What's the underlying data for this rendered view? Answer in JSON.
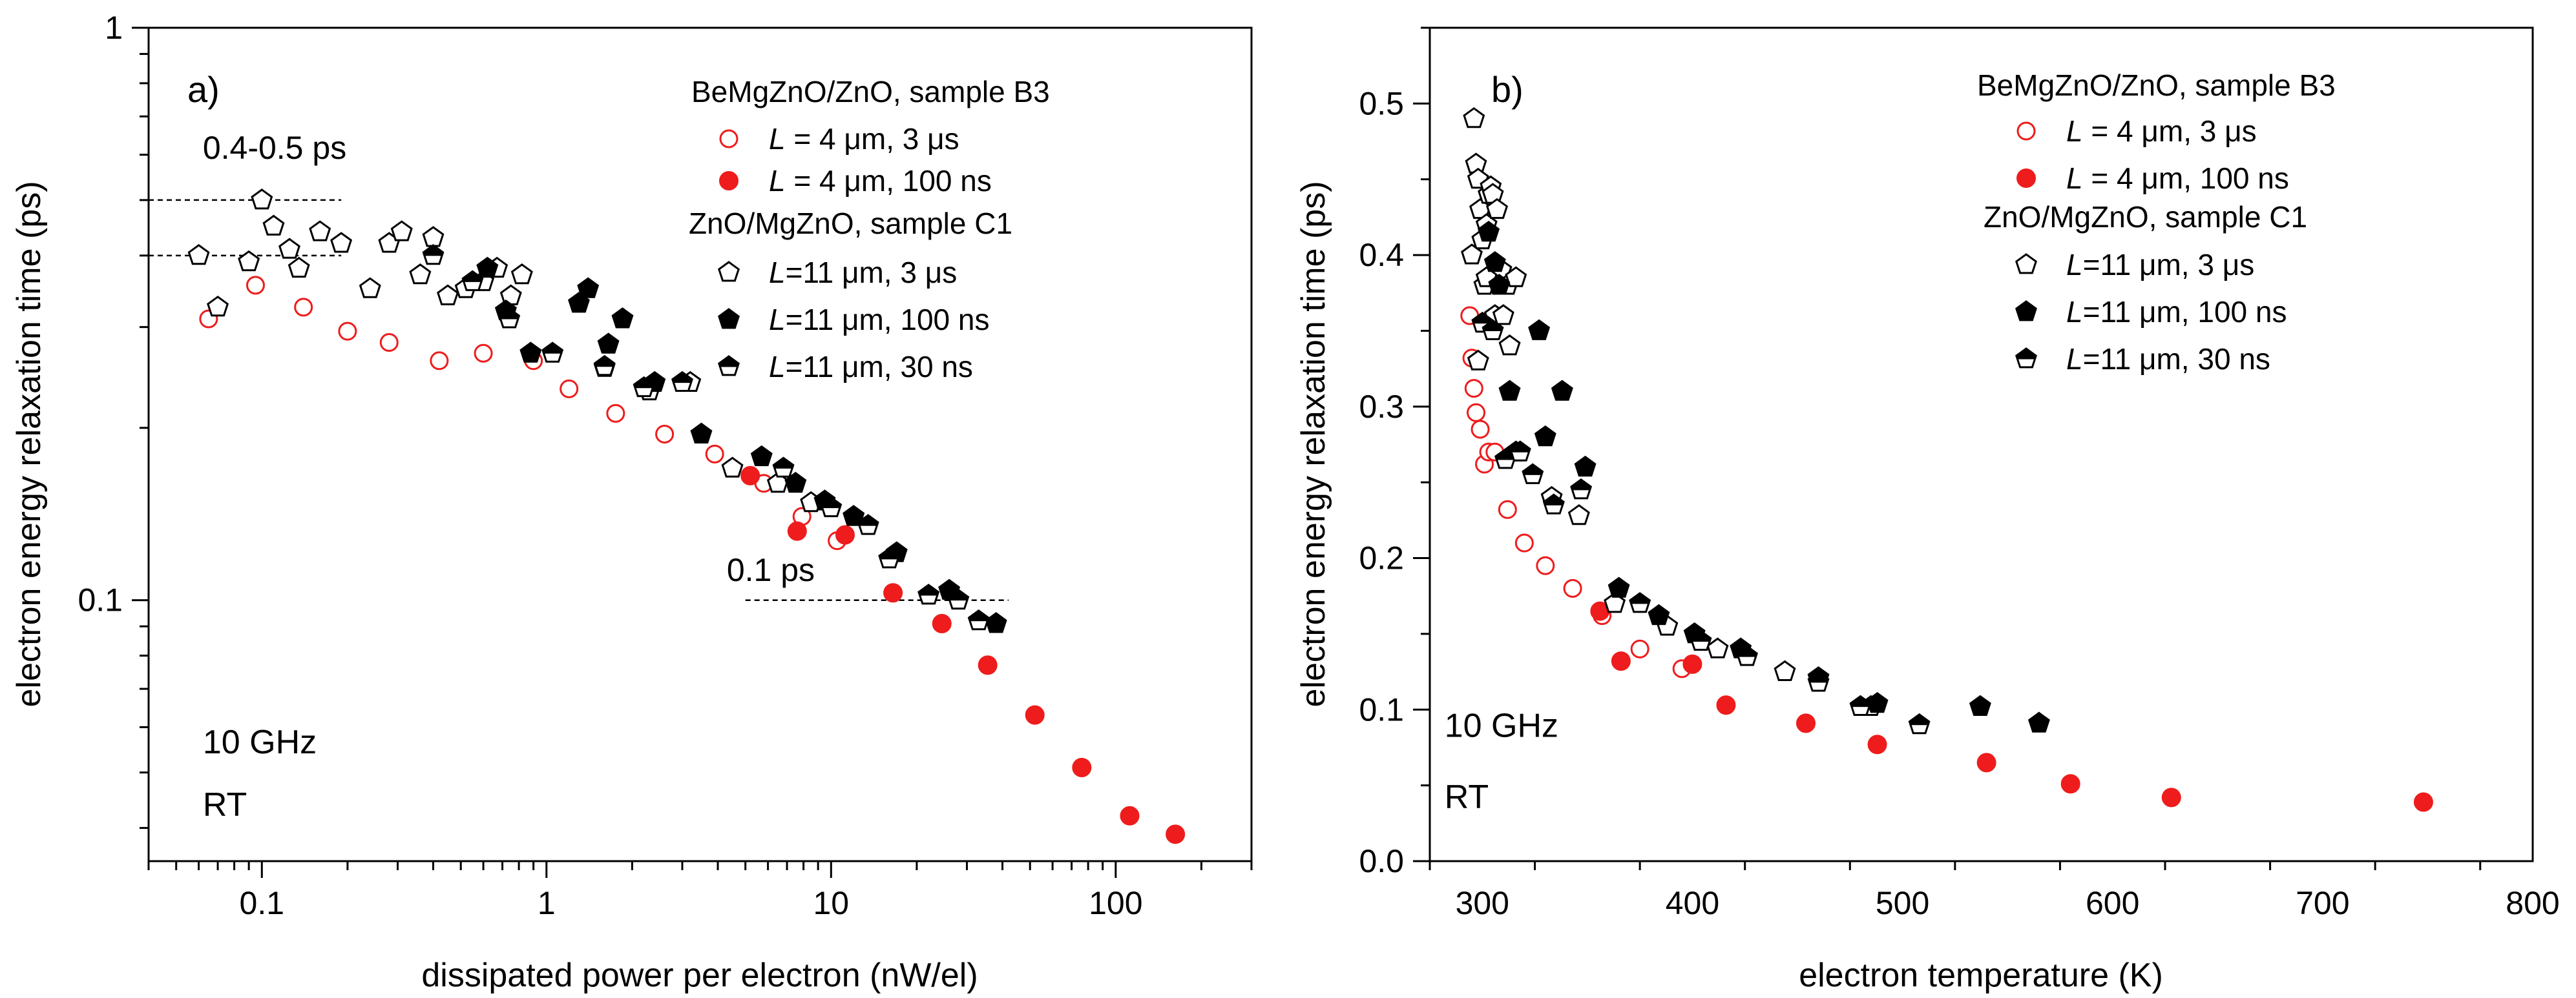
{
  "colors": {
    "red": "#ee1c1c",
    "black": "#000000"
  },
  "chart_data": [
    {
      "type": "scatter",
      "panel_label": "a)",
      "xscale": "log",
      "yscale": "log",
      "xlim": [
        0.04,
        300
      ],
      "ylim": [
        0.035,
        1
      ],
      "x_ticks": [
        0.1,
        1,
        10,
        100
      ],
      "x_tick_labels": [
        "0.1",
        "1",
        "10",
        "100"
      ],
      "y_ticks": [
        0.1,
        1
      ],
      "y_tick_labels": [
        "0.1",
        "1"
      ],
      "xlabel": "dissipated power per electron (nW/el)",
      "ylabel": "electron energy relaxation time (ps)",
      "annotations": [
        {
          "text": "0.4-0.5 ps",
          "x": 0.062,
          "y": 0.59
        },
        {
          "text": "0.1 ps",
          "x": 4.3,
          "y": 0.108
        },
        {
          "text": "10 GHz",
          "x": 0.062,
          "y": 0.054
        },
        {
          "text": "RT",
          "x": 0.062,
          "y": 0.042
        }
      ],
      "reference_lines": [
        {
          "x": [
            0.04,
            0.19
          ],
          "y": 0.5
        },
        {
          "x": [
            0.04,
            0.19
          ],
          "y": 0.4
        },
        {
          "x": [
            5.0,
            42.0
          ],
          "y": 0.1
        }
      ],
      "legend": {
        "group1": "BeMgZnO/ZnO, sample B3",
        "group2": "ZnO/MgZnO, sample C1"
      },
      "series": [
        {
          "name": "L = 4 μm, 3 μs",
          "var": "L",
          "rest": " = 4 μm, 3 μs",
          "group": 1,
          "marker": "circle-open",
          "color": "#ee1c1c",
          "x": [
            0.065,
            0.095,
            0.14,
            0.2,
            0.28,
            0.42,
            0.6,
            0.9,
            1.2,
            1.75,
            2.6,
            3.9,
            5.8,
            7.9,
            10.5
          ],
          "y": [
            0.31,
            0.355,
            0.325,
            0.295,
            0.282,
            0.262,
            0.27,
            0.262,
            0.234,
            0.212,
            0.195,
            0.18,
            0.16,
            0.14,
            0.127
          ]
        },
        {
          "name": "L = 4 μm, 100 ns",
          "var": "L",
          "rest": " = 4 μm, 100 ns",
          "group": 1,
          "marker": "circle-filled",
          "color": "#ee1c1c",
          "x": [
            5.2,
            7.6,
            11.2,
            16.5,
            24.5,
            35.5,
            52,
            76,
            112,
            162
          ],
          "y": [
            0.165,
            0.132,
            0.13,
            0.103,
            0.091,
            0.077,
            0.063,
            0.051,
            0.042,
            0.039
          ]
        },
        {
          "name": "L=11 μm, 3 μs",
          "var": "L",
          "rest": "=11 μm, 3 μs",
          "group": 2,
          "marker": "pentagon-open",
          "color": "#000000",
          "x": [
            0.06,
            0.07,
            0.09,
            0.1,
            0.11,
            0.125,
            0.135,
            0.16,
            0.19,
            0.24,
            0.28,
            0.31,
            0.36,
            0.4,
            0.45,
            0.52,
            0.6,
            0.67,
            0.75,
            0.82,
            1.6,
            2.3,
            3.2,
            4.5,
            6.5,
            8.5,
            12
          ],
          "y": [
            0.4,
            0.325,
            0.39,
            0.5,
            0.45,
            0.41,
            0.38,
            0.44,
            0.42,
            0.35,
            0.42,
            0.44,
            0.37,
            0.43,
            0.34,
            0.35,
            0.36,
            0.38,
            0.34,
            0.37,
            0.255,
            0.232,
            0.24,
            0.17,
            0.16,
            0.148,
            0.14
          ]
        },
        {
          "name": "L=11 μm, 100 ns",
          "var": "L",
          "rest": "=11 μm, 100 ns",
          "group": 2,
          "marker": "pentagon-filled",
          "color": "#000000",
          "x": [
            0.62,
            0.72,
            0.88,
            1.3,
            1.4,
            1.65,
            1.85,
            2.4,
            3.5,
            5.7,
            7.5,
            9.5,
            12,
            17,
            26,
            38
          ],
          "y": [
            0.38,
            0.32,
            0.27,
            0.33,
            0.35,
            0.28,
            0.31,
            0.24,
            0.195,
            0.178,
            0.16,
            0.149,
            0.14,
            0.121,
            0.104,
            0.091
          ]
        },
        {
          "name": "L=11 μm, 30 ns",
          "var": "L",
          "rest": "=11 μm, 30 ns",
          "group": 2,
          "marker": "pentagon-half",
          "color": "#000000",
          "x": [
            0.4,
            0.55,
            0.74,
            1.05,
            1.6,
            2.2,
            3.0,
            6.8,
            10,
            13.5,
            16,
            22,
            28,
            33
          ],
          "y": [
            0.4,
            0.36,
            0.31,
            0.27,
            0.256,
            0.235,
            0.24,
            0.17,
            0.145,
            0.135,
            0.118,
            0.102,
            0.1,
            0.092
          ]
        }
      ]
    },
    {
      "type": "scatter",
      "panel_label": "b)",
      "xscale": "linear",
      "yscale": "linear",
      "xlim": [
        275,
        800
      ],
      "ylim": [
        0,
        0.55
      ],
      "x_ticks": [
        300,
        400,
        500,
        600,
        700,
        800
      ],
      "x_tick_labels": [
        "300",
        "400",
        "500",
        "600",
        "700",
        "800"
      ],
      "y_ticks": [
        0.0,
        0.1,
        0.2,
        0.3,
        0.4,
        0.5
      ],
      "y_tick_labels": [
        "0.0",
        "0.1",
        "0.2",
        "0.3",
        "0.4",
        "0.5"
      ],
      "xlabel": "electron temperature (K)",
      "ylabel": "electron energy relaxation time (ps)",
      "annotations": [
        {
          "text": "10 GHz",
          "x": 282,
          "y": 0.082
        },
        {
          "text": "RT",
          "x": 282,
          "y": 0.035
        }
      ],
      "legend": {
        "group1": "BeMgZnO/ZnO, sample B3",
        "group2": "ZnO/MgZnO, sample C1"
      },
      "series": [
        {
          "name": "L = 4 μm, 3 μs",
          "var": "L",
          "rest": " = 4 μm, 3 μs",
          "group": 1,
          "marker": "circle-open",
          "color": "#ee1c1c",
          "x": [
            294,
            295,
            296,
            297,
            299,
            301,
            303,
            306,
            312,
            320,
            330,
            343,
            357,
            375,
            395
          ],
          "y": [
            0.36,
            0.332,
            0.312,
            0.296,
            0.285,
            0.262,
            0.27,
            0.27,
            0.232,
            0.21,
            0.195,
            0.18,
            0.162,
            0.14,
            0.127
          ]
        },
        {
          "name": "L = 4 μm, 100 ns",
          "var": "L",
          "rest": " = 4 μm, 100 ns",
          "group": 1,
          "marker": "circle-filled",
          "color": "#ee1c1c",
          "x": [
            356,
            366,
            400,
            416,
            454,
            488,
            540,
            580,
            628,
            748
          ],
          "y": [
            0.165,
            0.132,
            0.13,
            0.103,
            0.091,
            0.077,
            0.065,
            0.051,
            0.042,
            0.039
          ]
        },
        {
          "name": "L=11 μm, 3 μs",
          "var": "L",
          "rest": "=11 μm, 3 μs",
          "group": 2,
          "marker": "pentagon-open",
          "color": "#000000",
          "x": [
            296,
            297,
            298,
            299,
            300,
            302,
            303,
            304,
            305,
            307,
            309,
            312,
            295,
            301,
            306,
            298,
            302,
            310,
            313,
            316,
            333,
            346,
            363,
            388,
            412,
            444,
            485
          ],
          "y": [
            0.49,
            0.46,
            0.45,
            0.43,
            0.41,
            0.42,
            0.44,
            0.445,
            0.44,
            0.43,
            0.39,
            0.38,
            0.4,
            0.38,
            0.36,
            0.33,
            0.385,
            0.36,
            0.34,
            0.385,
            0.24,
            0.228,
            0.17,
            0.155,
            0.14,
            0.125,
            0.102
          ]
        },
        {
          "name": "L=11 μm, 100 ns",
          "var": "L",
          "rest": "=11 μm, 100 ns",
          "group": 2,
          "marker": "pentagon-filled",
          "color": "#000000",
          "x": [
            303,
            306,
            308,
            313,
            316,
            327,
            330,
            338,
            349,
            365,
            384,
            401,
            423,
            460,
            488,
            537,
            565
          ],
          "y": [
            0.415,
            0.395,
            0.38,
            0.31,
            0.27,
            0.35,
            0.28,
            0.31,
            0.26,
            0.18,
            0.162,
            0.15,
            0.14,
            0.121,
            0.104,
            0.102,
            0.091
          ]
        },
        {
          "name": "L=11 μm, 30 ns",
          "var": "L",
          "rest": "=11 μm, 30 ns",
          "group": 2,
          "marker": "pentagon-half",
          "color": "#000000",
          "x": [
            300,
            305,
            311,
            318,
            324,
            334,
            347,
            375,
            404,
            426,
            460,
            480,
            508
          ],
          "y": [
            0.355,
            0.35,
            0.265,
            0.27,
            0.255,
            0.235,
            0.245,
            0.17,
            0.145,
            0.135,
            0.118,
            0.102,
            0.09
          ]
        }
      ]
    }
  ]
}
